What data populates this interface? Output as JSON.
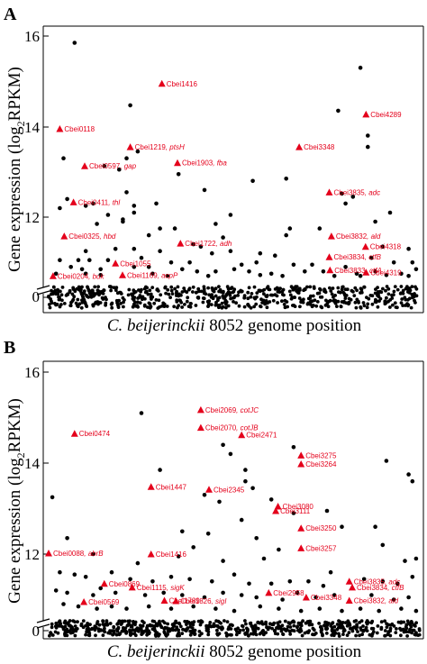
{
  "accent_color": "#e4001b",
  "chart_data": [
    {
      "type": "scatter",
      "panel": "A",
      "xlabel_italic": "C. beijerinckii",
      "xlabel_rest": " 8052 genome position",
      "ylabel_main": "Gene expression (log",
      "ylabel_sub": "2",
      "ylabel_end": "RPKM)",
      "y_ticks": [
        0,
        12,
        14,
        16
      ],
      "y_tick_labels": [
        "0",
        "12",
        "14",
        "16"
      ],
      "ylim": [
        10.5,
        16.2
      ],
      "y_axis_break": true,
      "x_range": [
        0,
        1
      ],
      "highlighted_genes": [
        {
          "label": "Cbei0118",
          "x": 0.03,
          "y": 13.95
        },
        {
          "label": "Cbei1416",
          "x": 0.305,
          "y": 14.95
        },
        {
          "label": "Cbei4289",
          "x": 0.855,
          "y": 14.27
        },
        {
          "label": "Cbei1219, ptsH",
          "x": 0.22,
          "y": 13.55
        },
        {
          "label": "Cbei3348",
          "x": 0.675,
          "y": 13.55
        },
        {
          "label": "Cbei0597, gap",
          "x": 0.097,
          "y": 13.13
        },
        {
          "label": "Cbei1903, fba",
          "x": 0.347,
          "y": 13.2
        },
        {
          "label": "Cbei0411, thl",
          "x": 0.067,
          "y": 12.33
        },
        {
          "label": "Cbei3835, adc",
          "x": 0.756,
          "y": 12.55
        },
        {
          "label": "Cbei0325, hbd",
          "x": 0.042,
          "y": 11.58
        },
        {
          "label": "Cbei1722, adh",
          "x": 0.355,
          "y": 11.42
        },
        {
          "label": "Cbei3832, ald",
          "x": 0.762,
          "y": 11.58
        },
        {
          "label": "Cbei4318",
          "x": 0.854,
          "y": 11.35
        },
        {
          "label": "Cbei1055",
          "x": 0.18,
          "y": 10.98
        },
        {
          "label": "Cbei3834, ctfB",
          "x": 0.756,
          "y": 11.12
        },
        {
          "label": "Cbei3833, ctfA",
          "x": 0.758,
          "y": 10.83
        },
        {
          "label": "Cbei4319",
          "x": 0.855,
          "y": 10.78
        },
        {
          "label": "Cbei1169, acpP",
          "x": 0.199,
          "y": 10.72
        },
        {
          "label": "Cbei0204, buk",
          "x": 0.012,
          "y": 10.7
        }
      ],
      "other_genes": [
        [
          0.07,
          15.85
        ],
        [
          0.22,
          14.47
        ],
        [
          0.84,
          15.3
        ],
        [
          0.78,
          14.35
        ],
        [
          0.86,
          13.8
        ],
        [
          0.86,
          13.55
        ],
        [
          0.04,
          13.3
        ],
        [
          0.24,
          13.45
        ],
        [
          0.21,
          13.3
        ],
        [
          0.15,
          13.13
        ],
        [
          0.19,
          13.05
        ],
        [
          0.35,
          12.95
        ],
        [
          0.64,
          12.85
        ],
        [
          0.55,
          12.8
        ],
        [
          0.42,
          12.6
        ],
        [
          0.79,
          12.52
        ],
        [
          0.82,
          12.45
        ],
        [
          0.8,
          12.3
        ],
        [
          0.12,
          12.3
        ],
        [
          0.21,
          12.55
        ],
        [
          0.23,
          12.25
        ],
        [
          0.23,
          12.1
        ],
        [
          0.29,
          12.3
        ],
        [
          0.05,
          12.4
        ],
        [
          0.1,
          12.25
        ],
        [
          0.03,
          12.2
        ],
        [
          0.16,
          12.05
        ],
        [
          0.2,
          11.95
        ],
        [
          0.2,
          11.9
        ],
        [
          0.13,
          11.85
        ],
        [
          0.49,
          12.05
        ],
        [
          0.45,
          11.85
        ],
        [
          0.34,
          11.75
        ],
        [
          0.3,
          11.75
        ],
        [
          0.65,
          11.75
        ],
        [
          0.73,
          11.75
        ],
        [
          0.88,
          11.9
        ],
        [
          0.92,
          12.1
        ],
        [
          0.27,
          11.6
        ],
        [
          0.64,
          11.6
        ],
        [
          0.47,
          11.55
        ],
        [
          0.39,
          11.4
        ],
        [
          0.41,
          11.35
        ],
        [
          0.9,
          11.35
        ],
        [
          0.97,
          11.3
        ],
        [
          0.1,
          11.25
        ],
        [
          0.18,
          11.3
        ],
        [
          0.23,
          11.3
        ],
        [
          0.3,
          11.25
        ],
        [
          0.44,
          11.2
        ],
        [
          0.49,
          11.25
        ],
        [
          0.57,
          11.2
        ],
        [
          0.61,
          11.15
        ],
        [
          0.87,
          11.1
        ],
        [
          0.98,
          11.0
        ],
        [
          0.03,
          11.05
        ],
        [
          0.08,
          11.05
        ],
        [
          0.11,
          11.05
        ],
        [
          0.16,
          11.05
        ],
        [
          0.25,
          11.1
        ],
        [
          0.33,
          11.0
        ],
        [
          0.38,
          11.0
        ],
        [
          0.52,
          10.95
        ],
        [
          0.56,
          11.0
        ],
        [
          0.66,
          10.95
        ],
        [
          0.71,
          10.95
        ],
        [
          0.8,
          10.9
        ],
        [
          0.93,
          11.0
        ],
        [
          0.06,
          10.9
        ],
        [
          0.09,
          10.85
        ],
        [
          0.14,
          10.85
        ],
        [
          0.23,
          10.9
        ],
        [
          0.27,
          10.9
        ],
        [
          0.36,
          10.85
        ],
        [
          0.4,
          10.8
        ],
        [
          0.45,
          10.8
        ],
        [
          0.5,
          10.85
        ],
        [
          0.54,
          10.8
        ],
        [
          0.6,
          10.75
        ],
        [
          0.69,
          10.8
        ],
        [
          0.74,
          10.8
        ],
        [
          0.83,
          10.75
        ],
        [
          0.88,
          10.8
        ],
        [
          0.95,
          10.75
        ],
        [
          0.99,
          10.85
        ],
        [
          0.02,
          10.75
        ],
        [
          0.1,
          10.75
        ],
        [
          0.14,
          10.72
        ],
        [
          0.28,
          10.75
        ],
        [
          0.32,
          10.7
        ],
        [
          0.43,
          10.7
        ],
        [
          0.57,
          10.72
        ],
        [
          0.63,
          10.7
        ],
        [
          0.77,
          10.7
        ],
        [
          0.84,
          10.7
        ],
        [
          0.91,
          10.72
        ],
        [
          0.97,
          10.7
        ]
      ]
    },
    {
      "type": "scatter",
      "panel": "B",
      "xlabel_italic": "C. beijerinckii",
      "xlabel_rest": " 8052 genome position",
      "ylabel_main": "Gene expression (log",
      "ylabel_sub": "2",
      "ylabel_end": "RPKM)",
      "y_ticks": [
        0,
        12,
        14,
        16
      ],
      "y_tick_labels": [
        "0",
        "12",
        "14",
        "16"
      ],
      "ylim": [
        10.5,
        16.2
      ],
      "y_axis_break": true,
      "x_range": [
        0,
        1
      ],
      "highlighted_genes": [
        {
          "label": "Cbei2069, cotJC",
          "x": 0.41,
          "y": 15.17
        },
        {
          "label": "Cbei0474",
          "x": 0.07,
          "y": 14.65
        },
        {
          "label": "Cbei2070, cotJB",
          "x": 0.41,
          "y": 14.78
        },
        {
          "label": "Cbei2471",
          "x": 0.52,
          "y": 14.62
        },
        {
          "label": "Cbei3275",
          "x": 0.68,
          "y": 14.17
        },
        {
          "label": "Cbei3264",
          "x": 0.68,
          "y": 13.98
        },
        {
          "label": "Cbei1447",
          "x": 0.276,
          "y": 13.48
        },
        {
          "label": "Cbei2345",
          "x": 0.432,
          "y": 13.42
        },
        {
          "label": "Cbei3080",
          "x": 0.618,
          "y": 13.05
        },
        {
          "label": "Cbei3111",
          "x": 0.612,
          "y": 12.95
        },
        {
          "label": "Cbei3250",
          "x": 0.68,
          "y": 12.57
        },
        {
          "label": "Cbei3257",
          "x": 0.68,
          "y": 12.13
        },
        {
          "label": "Cbei0088, abrB",
          "x": 0.0,
          "y": 12.02
        },
        {
          "label": "Cbei1416",
          "x": 0.276,
          "y": 12.0
        },
        {
          "label": "Cbei0869",
          "x": 0.15,
          "y": 11.35
        },
        {
          "label": "Cbei1115, sigK",
          "x": 0.225,
          "y": 11.27
        },
        {
          "label": "Cbei2958",
          "x": 0.593,
          "y": 11.15
        },
        {
          "label": "Cbei3348",
          "x": 0.694,
          "y": 11.05
        },
        {
          "label": "Cbei3835, adc",
          "x": 0.81,
          "y": 11.4
        },
        {
          "label": "Cbei3834, ctfB",
          "x": 0.818,
          "y": 11.27
        },
        {
          "label": "Cbei0569",
          "x": 0.095,
          "y": 10.95
        },
        {
          "label": "Cbei1789",
          "x": 0.312,
          "y": 10.98
        },
        {
          "label": "Cbei1826, sigI",
          "x": 0.343,
          "y": 10.97
        },
        {
          "label": "Cbei3832, ald",
          "x": 0.81,
          "y": 10.98
        }
      ],
      "other_genes": [
        [
          0.01,
          13.25
        ],
        [
          0.25,
          15.1
        ],
        [
          0.49,
          14.2
        ],
        [
          0.47,
          14.4
        ],
        [
          0.66,
          14.35
        ],
        [
          0.91,
          14.05
        ],
        [
          0.97,
          13.75
        ],
        [
          0.98,
          13.6
        ],
        [
          0.3,
          13.85
        ],
        [
          0.53,
          13.85
        ],
        [
          0.53,
          13.6
        ],
        [
          0.55,
          13.45
        ],
        [
          0.42,
          13.3
        ],
        [
          0.46,
          13.15
        ],
        [
          0.6,
          13.2
        ],
        [
          0.66,
          12.9
        ],
        [
          0.75,
          12.95
        ],
        [
          0.79,
          12.6
        ],
        [
          0.52,
          12.75
        ],
        [
          0.36,
          12.5
        ],
        [
          0.43,
          12.45
        ],
        [
          0.56,
          12.35
        ],
        [
          0.62,
          12.1
        ],
        [
          0.88,
          12.6
        ],
        [
          0.9,
          12.2
        ],
        [
          0.05,
          12.35
        ],
        [
          0.12,
          12.0
        ],
        [
          0.39,
          12.15
        ],
        [
          0.35,
          11.95
        ],
        [
          0.47,
          11.85
        ],
        [
          0.24,
          11.8
        ],
        [
          0.58,
          11.9
        ],
        [
          0.76,
          11.6
        ],
        [
          0.96,
          11.85
        ],
        [
          0.99,
          11.9
        ],
        [
          0.03,
          11.6
        ],
        [
          0.07,
          11.55
        ],
        [
          0.1,
          11.5
        ],
        [
          0.17,
          11.6
        ],
        [
          0.22,
          11.45
        ],
        [
          0.28,
          11.4
        ],
        [
          0.33,
          11.5
        ],
        [
          0.38,
          11.45
        ],
        [
          0.44,
          11.4
        ],
        [
          0.5,
          11.55
        ],
        [
          0.54,
          11.35
        ],
        [
          0.6,
          11.35
        ],
        [
          0.65,
          11.4
        ],
        [
          0.7,
          11.4
        ],
        [
          0.74,
          11.3
        ],
        [
          0.85,
          11.45
        ],
        [
          0.9,
          11.4
        ],
        [
          0.94,
          11.35
        ],
        [
          0.98,
          11.5
        ],
        [
          0.02,
          11.2
        ],
        [
          0.05,
          11.15
        ],
        [
          0.12,
          11.1
        ],
        [
          0.14,
          11.25
        ],
        [
          0.18,
          11.15
        ],
        [
          0.26,
          11.1
        ],
        [
          0.31,
          11.15
        ],
        [
          0.36,
          11.1
        ],
        [
          0.42,
          11.05
        ],
        [
          0.47,
          11.15
        ],
        [
          0.52,
          11.1
        ],
        [
          0.56,
          11.05
        ],
        [
          0.63,
          11.0
        ],
        [
          0.67,
          11.15
        ],
        [
          0.72,
          11.05
        ],
        [
          0.77,
          11.1
        ],
        [
          0.87,
          11.1
        ],
        [
          0.93,
          11.0
        ],
        [
          0.97,
          11.05
        ],
        [
          0.04,
          10.9
        ],
        [
          0.08,
          10.85
        ],
        [
          0.13,
          10.8
        ],
        [
          0.17,
          10.85
        ],
        [
          0.21,
          10.8
        ],
        [
          0.27,
          10.85
        ],
        [
          0.33,
          10.8
        ],
        [
          0.39,
          10.85
        ],
        [
          0.45,
          10.8
        ],
        [
          0.5,
          10.75
        ],
        [
          0.57,
          10.85
        ],
        [
          0.62,
          10.8
        ],
        [
          0.68,
          10.75
        ],
        [
          0.73,
          10.8
        ],
        [
          0.79,
          10.75
        ],
        [
          0.84,
          10.8
        ],
        [
          0.89,
          10.75
        ],
        [
          0.95,
          10.8
        ],
        [
          0.99,
          10.75
        ]
      ]
    }
  ]
}
